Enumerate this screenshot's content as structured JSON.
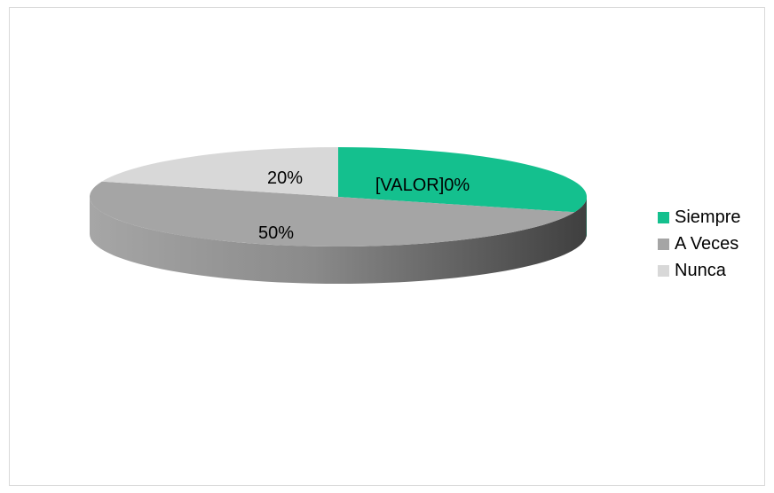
{
  "chart_data": {
    "type": "pie",
    "title": "",
    "slices": [
      {
        "name": "Siempre",
        "value": 30,
        "label": "[VALOR]0%",
        "color": "#14c08e"
      },
      {
        "name": "A Veces",
        "value": 50,
        "label": "50%",
        "color": "#a5a5a5"
      },
      {
        "name": "Nunca",
        "value": 20,
        "label": "20%",
        "color": "#d8d8d8"
      }
    ],
    "style": "3d",
    "legend": "right"
  }
}
